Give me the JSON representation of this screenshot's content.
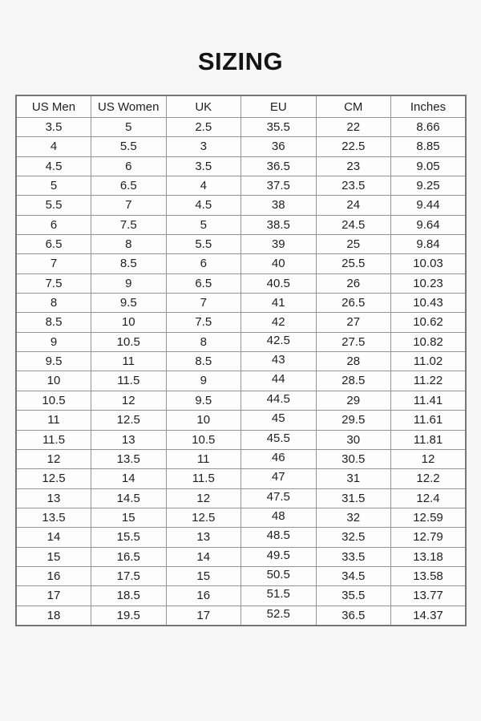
{
  "page": {
    "title": "SIZING"
  },
  "chart_data": {
    "type": "table",
    "title": "SIZING",
    "columns": [
      "US Men",
      "US Women",
      "UK",
      "EU",
      "CM",
      "Inches"
    ],
    "rows": [
      [
        "3.5",
        "5",
        "2.5",
        "35.5",
        "22",
        "8.66"
      ],
      [
        "4",
        "5.5",
        "3",
        "36",
        "22.5",
        "8.85"
      ],
      [
        "4.5",
        "6",
        "3.5",
        "36.5",
        "23",
        "9.05"
      ],
      [
        "5",
        "6.5",
        "4",
        "37.5",
        "23.5",
        "9.25"
      ],
      [
        "5.5",
        "7",
        "4.5",
        "38",
        "24",
        "9.44"
      ],
      [
        "6",
        "7.5",
        "5",
        "38.5",
        "24.5",
        "9.64"
      ],
      [
        "6.5",
        "8",
        "5.5",
        "39",
        "25",
        "9.84"
      ],
      [
        "7",
        "8.5",
        "6",
        "40",
        "25.5",
        "10.03"
      ],
      [
        "7.5",
        "9",
        "6.5",
        "40.5",
        "26",
        "10.23"
      ],
      [
        "8",
        "9.5",
        "7",
        "41",
        "26.5",
        "10.43"
      ],
      [
        "8.5",
        "10",
        "7.5",
        "42",
        "27",
        "10.62"
      ],
      [
        "9",
        "10.5",
        "8",
        "42.5",
        "27.5",
        "10.82"
      ],
      [
        "9.5",
        "11",
        "8.5",
        "43",
        "28",
        "11.02"
      ],
      [
        "10",
        "11.5",
        "9",
        "44",
        "28.5",
        "11.22"
      ],
      [
        "10.5",
        "12",
        "9.5",
        "44.5",
        "29",
        "11.41"
      ],
      [
        "11",
        "12.5",
        "10",
        "45",
        "29.5",
        "11.61"
      ],
      [
        "11.5",
        "13",
        "10.5",
        "45.5",
        "30",
        "11.81"
      ],
      [
        "12",
        "13.5",
        "11",
        "46",
        "30.5",
        "12"
      ],
      [
        "12.5",
        "14",
        "11.5",
        "47",
        "31",
        "12.2"
      ],
      [
        "13",
        "14.5",
        "12",
        "47.5",
        "31.5",
        "12.4"
      ],
      [
        "13.5",
        "15",
        "12.5",
        "48",
        "32",
        "12.59"
      ],
      [
        "14",
        "15.5",
        "13",
        "48.5",
        "32.5",
        "12.79"
      ],
      [
        "15",
        "16.5",
        "14",
        "49.5",
        "33.5",
        "13.18"
      ],
      [
        "16",
        "17.5",
        "15",
        "50.5",
        "34.5",
        "13.58"
      ],
      [
        "17",
        "18.5",
        "16",
        "51.5",
        "35.5",
        "13.77"
      ],
      [
        "18",
        "19.5",
        "17",
        "52.5",
        "36.5",
        "14.37"
      ]
    ],
    "layout": {
      "eu_raised_from_row_index": 11
    }
  }
}
